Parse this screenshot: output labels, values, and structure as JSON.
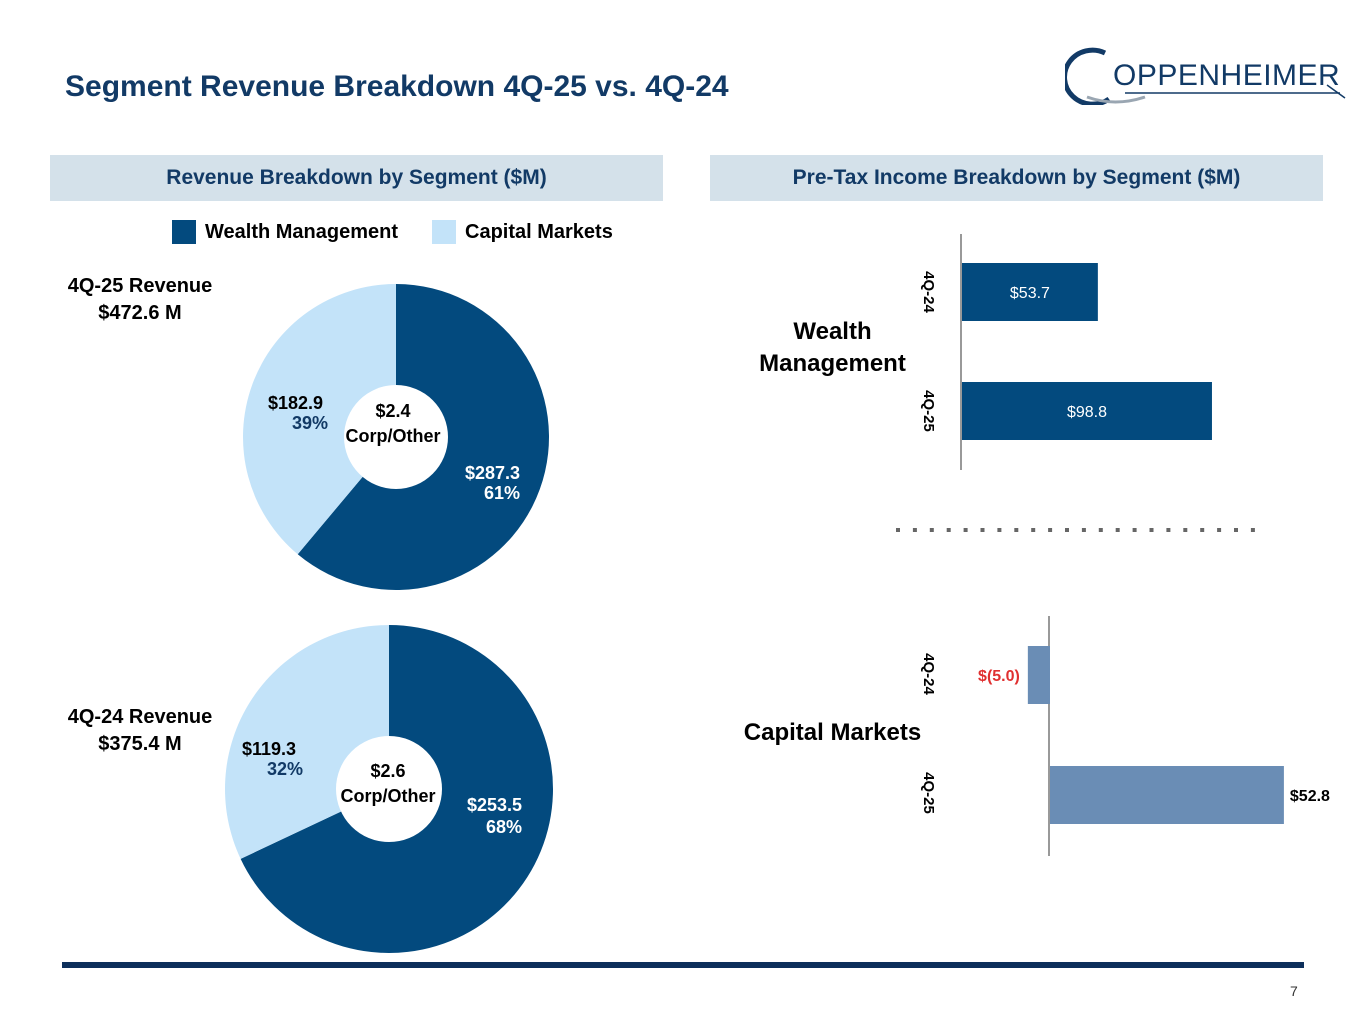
{
  "title": "Segment Revenue Breakdown 4Q-25 vs. 4Q-24",
  "logo_text": "OPPENHEIMER",
  "page_number": "7",
  "colors": {
    "wealth": "#034a7e",
    "capital": "#c3e3f9",
    "capital_bar": "#6a8db5",
    "header_bg": "#d4e1ea",
    "navy": "#123a66",
    "negative": "#e03030"
  },
  "left_panel": {
    "header": "Revenue Breakdown by Segment ($M)",
    "legend": [
      "Wealth Management",
      "Capital Markets"
    ],
    "pie_4q25": {
      "label_line1": "4Q-25 Revenue",
      "label_line2": "$472.6 M",
      "center_value": "$2.4",
      "center_label": "Corp/Other",
      "wealth_value": "$287.3",
      "wealth_pct": "61%",
      "capital_value": "$182.9",
      "capital_pct": "39%"
    },
    "pie_4q24": {
      "label_line1": "4Q-24 Revenue",
      "label_line2": "$375.4 M",
      "center_value": "$2.6",
      "center_label": "Corp/Other",
      "wealth_value": "$253.5",
      "wealth_pct": "68%",
      "capital_value": "$119.3",
      "capital_pct": "32%"
    }
  },
  "right_panel": {
    "header": "Pre-Tax Income Breakdown by Segment ($M)",
    "wealth_label_line1": "Wealth",
    "wealth_label_line2": "Management",
    "capital_label": "Capital Markets"
  },
  "chart_data": [
    {
      "type": "pie",
      "title": "4Q-25 Revenue $472.6 M",
      "categories": [
        "Wealth Management",
        "Capital Markets"
      ],
      "values": [
        287.3,
        182.9
      ],
      "percent_labels": [
        "61%",
        "39%"
      ],
      "center_note": "Corp/Other $2.4"
    },
    {
      "type": "pie",
      "title": "4Q-24 Revenue $375.4 M",
      "categories": [
        "Wealth Management",
        "Capital Markets"
      ],
      "values": [
        253.5,
        119.3
      ],
      "percent_labels": [
        "68%",
        "32%"
      ],
      "center_note": "Corp/Other $2.6"
    },
    {
      "type": "bar",
      "orientation": "horizontal",
      "title": "Wealth Management",
      "categories": [
        "4Q-24",
        "4Q-25"
      ],
      "values": [
        53.7,
        98.8
      ],
      "labels": [
        "$53.7",
        "$98.8"
      ],
      "xlim": [
        0,
        120
      ]
    },
    {
      "type": "bar",
      "orientation": "horizontal",
      "title": "Capital Markets",
      "categories": [
        "4Q-24",
        "4Q-25"
      ],
      "values": [
        -5.0,
        52.8
      ],
      "labels": [
        "$(5.0)",
        "$52.8"
      ],
      "xlim": [
        -10,
        60
      ]
    }
  ]
}
